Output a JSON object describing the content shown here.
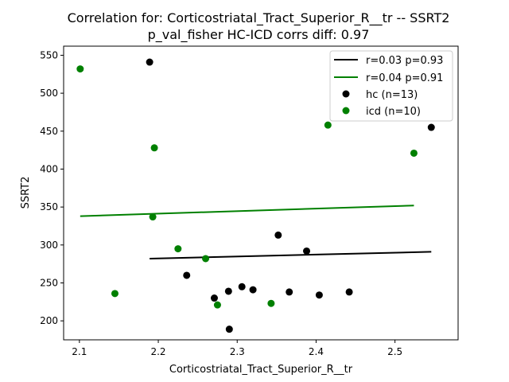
{
  "chart_data": {
    "type": "scatter",
    "title": "Correlation for: Corticostriatal_Tract_Superior_R__tr -- SSRT2",
    "subtitle": "p_val_fisher HC-ICD corrs diff: 0.97",
    "xlabel": "Corticostriatal_Tract_Superior_R__tr",
    "ylabel": "SSRT2",
    "xlim": [
      2.08,
      2.58
    ],
    "ylim": [
      175,
      562
    ],
    "x_ticks": [
      2.1,
      2.2,
      2.3,
      2.4,
      2.5
    ],
    "x_tick_labels": [
      "2.1",
      "2.2",
      "2.3",
      "2.4",
      "2.5"
    ],
    "y_ticks": [
      200,
      250,
      300,
      350,
      400,
      450,
      500,
      550
    ],
    "y_tick_labels": [
      "200",
      "250",
      "300",
      "350",
      "400",
      "450",
      "500",
      "550"
    ],
    "grid": false,
    "legend_position": "top-right",
    "series": [
      {
        "name": "hc (n=13)",
        "color": "#000000",
        "points": [
          [
            2.189,
            541
          ],
          [
            2.236,
            260
          ],
          [
            2.271,
            230
          ],
          [
            2.289,
            239
          ],
          [
            2.29,
            189
          ],
          [
            2.306,
            245
          ],
          [
            2.32,
            241
          ],
          [
            2.352,
            313
          ],
          [
            2.366,
            238
          ],
          [
            2.388,
            292
          ],
          [
            2.404,
            234
          ],
          [
            2.442,
            238
          ],
          [
            2.546,
            455
          ]
        ]
      },
      {
        "name": "icd (n=10)",
        "color": "#008000",
        "points": [
          [
            2.101,
            532
          ],
          [
            2.145,
            236
          ],
          [
            2.193,
            337
          ],
          [
            2.195,
            428
          ],
          [
            2.225,
            295
          ],
          [
            2.26,
            282
          ],
          [
            2.275,
            221
          ],
          [
            2.343,
            223
          ],
          [
            2.415,
            458
          ],
          [
            2.524,
            421
          ]
        ]
      }
    ],
    "fit_lines": [
      {
        "name": "r=0.03 p=0.93",
        "color": "#000000",
        "x": [
          2.189,
          2.546
        ],
        "y": [
          282,
          291
        ]
      },
      {
        "name": "r=0.04 p=0.91",
        "color": "#008000",
        "x": [
          2.101,
          2.524
        ],
        "y": [
          338,
          352
        ]
      }
    ]
  }
}
